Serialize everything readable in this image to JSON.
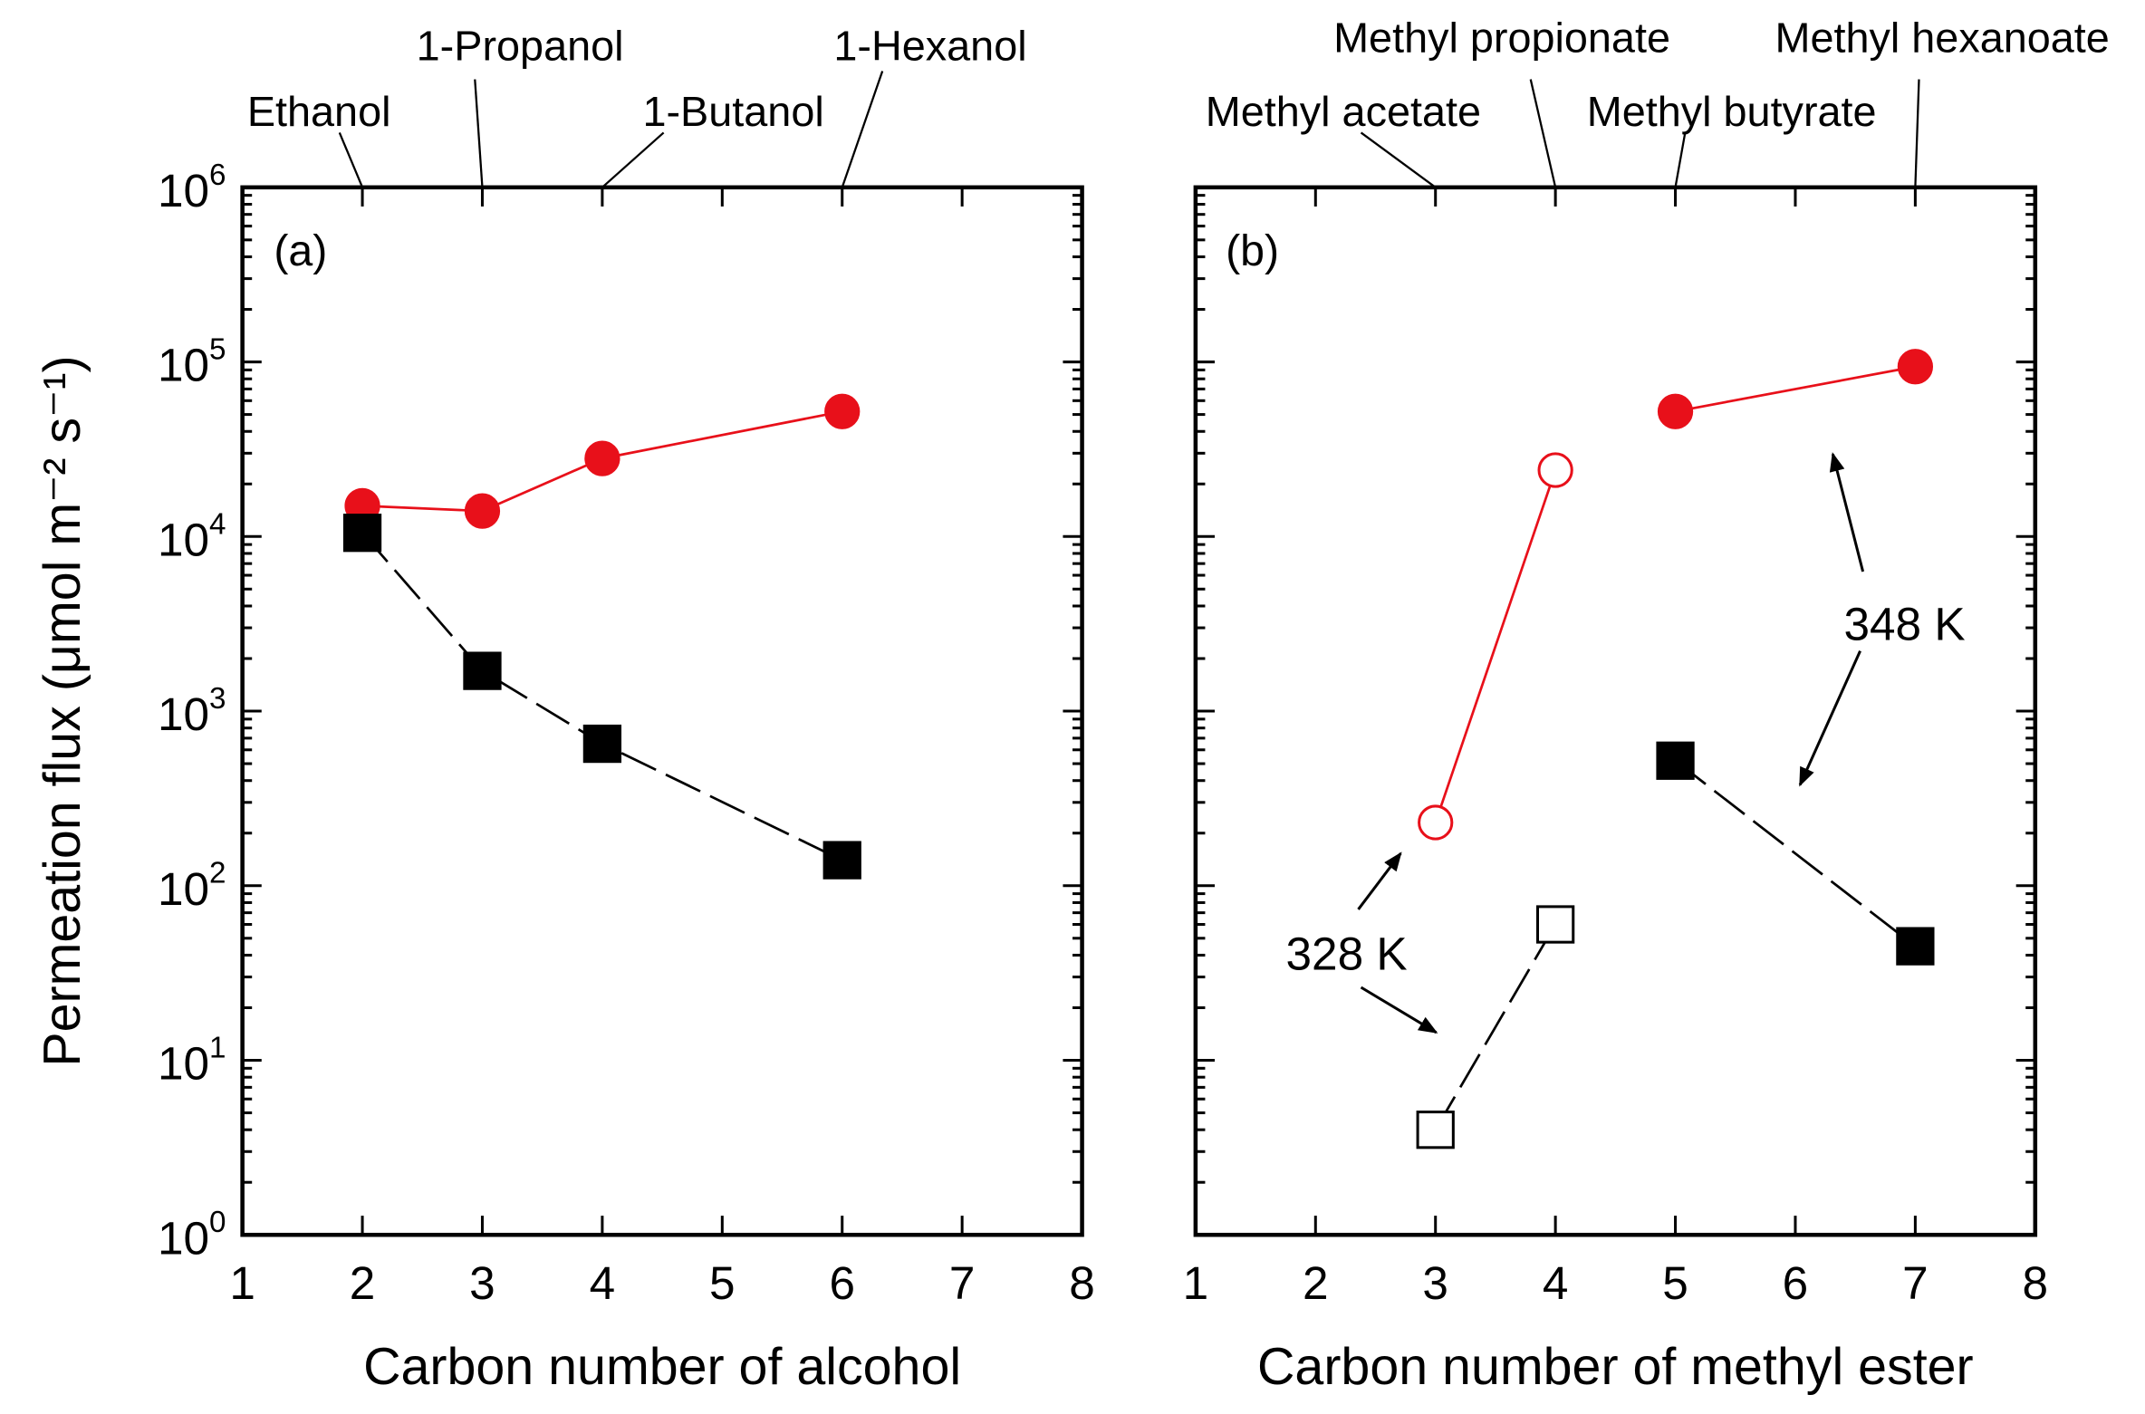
{
  "y_axis_title": "Permeation flux (μmol m⁻² s⁻¹)",
  "y_tick_labels": [
    {
      "base": "10",
      "exp": "0"
    },
    {
      "base": "10",
      "exp": "1"
    },
    {
      "base": "10",
      "exp": "2"
    },
    {
      "base": "10",
      "exp": "3"
    },
    {
      "base": "10",
      "exp": "4"
    },
    {
      "base": "10",
      "exp": "5"
    },
    {
      "base": "10",
      "exp": "6"
    }
  ],
  "x_tick_labels": [
    "1",
    "2",
    "3",
    "4",
    "5",
    "6",
    "7",
    "8"
  ],
  "colors": {
    "red": "#e8101a",
    "black": "#000000"
  },
  "chart_data": [
    {
      "type": "scatter",
      "panel_label": "(a)",
      "xlabel": "Carbon number of alcohol",
      "ylabel": "Permeation flux (μmol m⁻² s⁻¹)",
      "xlim": [
        1,
        8
      ],
      "ylim": [
        1,
        1000000
      ],
      "yscale": "log",
      "top_labels": [
        {
          "text": "Ethanol",
          "x": 2
        },
        {
          "text": "1-Propanol",
          "x": 3
        },
        {
          "text": "1-Butanol",
          "x": 4
        },
        {
          "text": "1-Hexanol",
          "x": 6
        }
      ],
      "series": [
        {
          "name": "348 K red filled circles",
          "marker": "circle",
          "filled": true,
          "color": "#e8101a",
          "line": "solid",
          "x": [
            2,
            3,
            4,
            6
          ],
          "y": [
            15000,
            14000,
            28000,
            52000
          ]
        },
        {
          "name": "black filled squares",
          "marker": "square",
          "filled": true,
          "color": "#000000",
          "line": "dashed",
          "x": [
            2,
            3,
            4,
            6
          ],
          "y": [
            10500,
            1700,
            650,
            140
          ]
        }
      ],
      "annotations": []
    },
    {
      "type": "scatter",
      "panel_label": "(b)",
      "xlabel": "Carbon number of methyl ester",
      "ylabel": "",
      "xlim": [
        1,
        8
      ],
      "ylim": [
        1,
        1000000
      ],
      "yscale": "log",
      "top_labels": [
        {
          "text": "Methyl acetate",
          "x": 3
        },
        {
          "text": "Methyl propionate",
          "x": 4
        },
        {
          "text": "Methyl butyrate",
          "x": 5
        },
        {
          "text": "Methyl hexanoate",
          "x": 7
        }
      ],
      "series": [
        {
          "name": "328 K open circles",
          "marker": "circle",
          "filled": false,
          "color": "#e8101a",
          "line": "solid",
          "x": [
            3,
            4
          ],
          "y": [
            230,
            24000
          ]
        },
        {
          "name": "348 K filled circles",
          "marker": "circle",
          "filled": true,
          "color": "#e8101a",
          "line": "solid",
          "x": [
            5,
            7
          ],
          "y": [
            52000,
            94000
          ]
        },
        {
          "name": "328 K open squares",
          "marker": "square",
          "filled": false,
          "color": "#000000",
          "line": "dashed",
          "x": [
            3,
            4
          ],
          "y": [
            4,
            60
          ]
        },
        {
          "name": "348 K filled squares",
          "marker": "square",
          "filled": true,
          "color": "#000000",
          "line": "dashed",
          "x": [
            5,
            7
          ],
          "y": [
            520,
            45
          ]
        }
      ],
      "annotations": [
        "348 K",
        "328 K"
      ]
    }
  ]
}
